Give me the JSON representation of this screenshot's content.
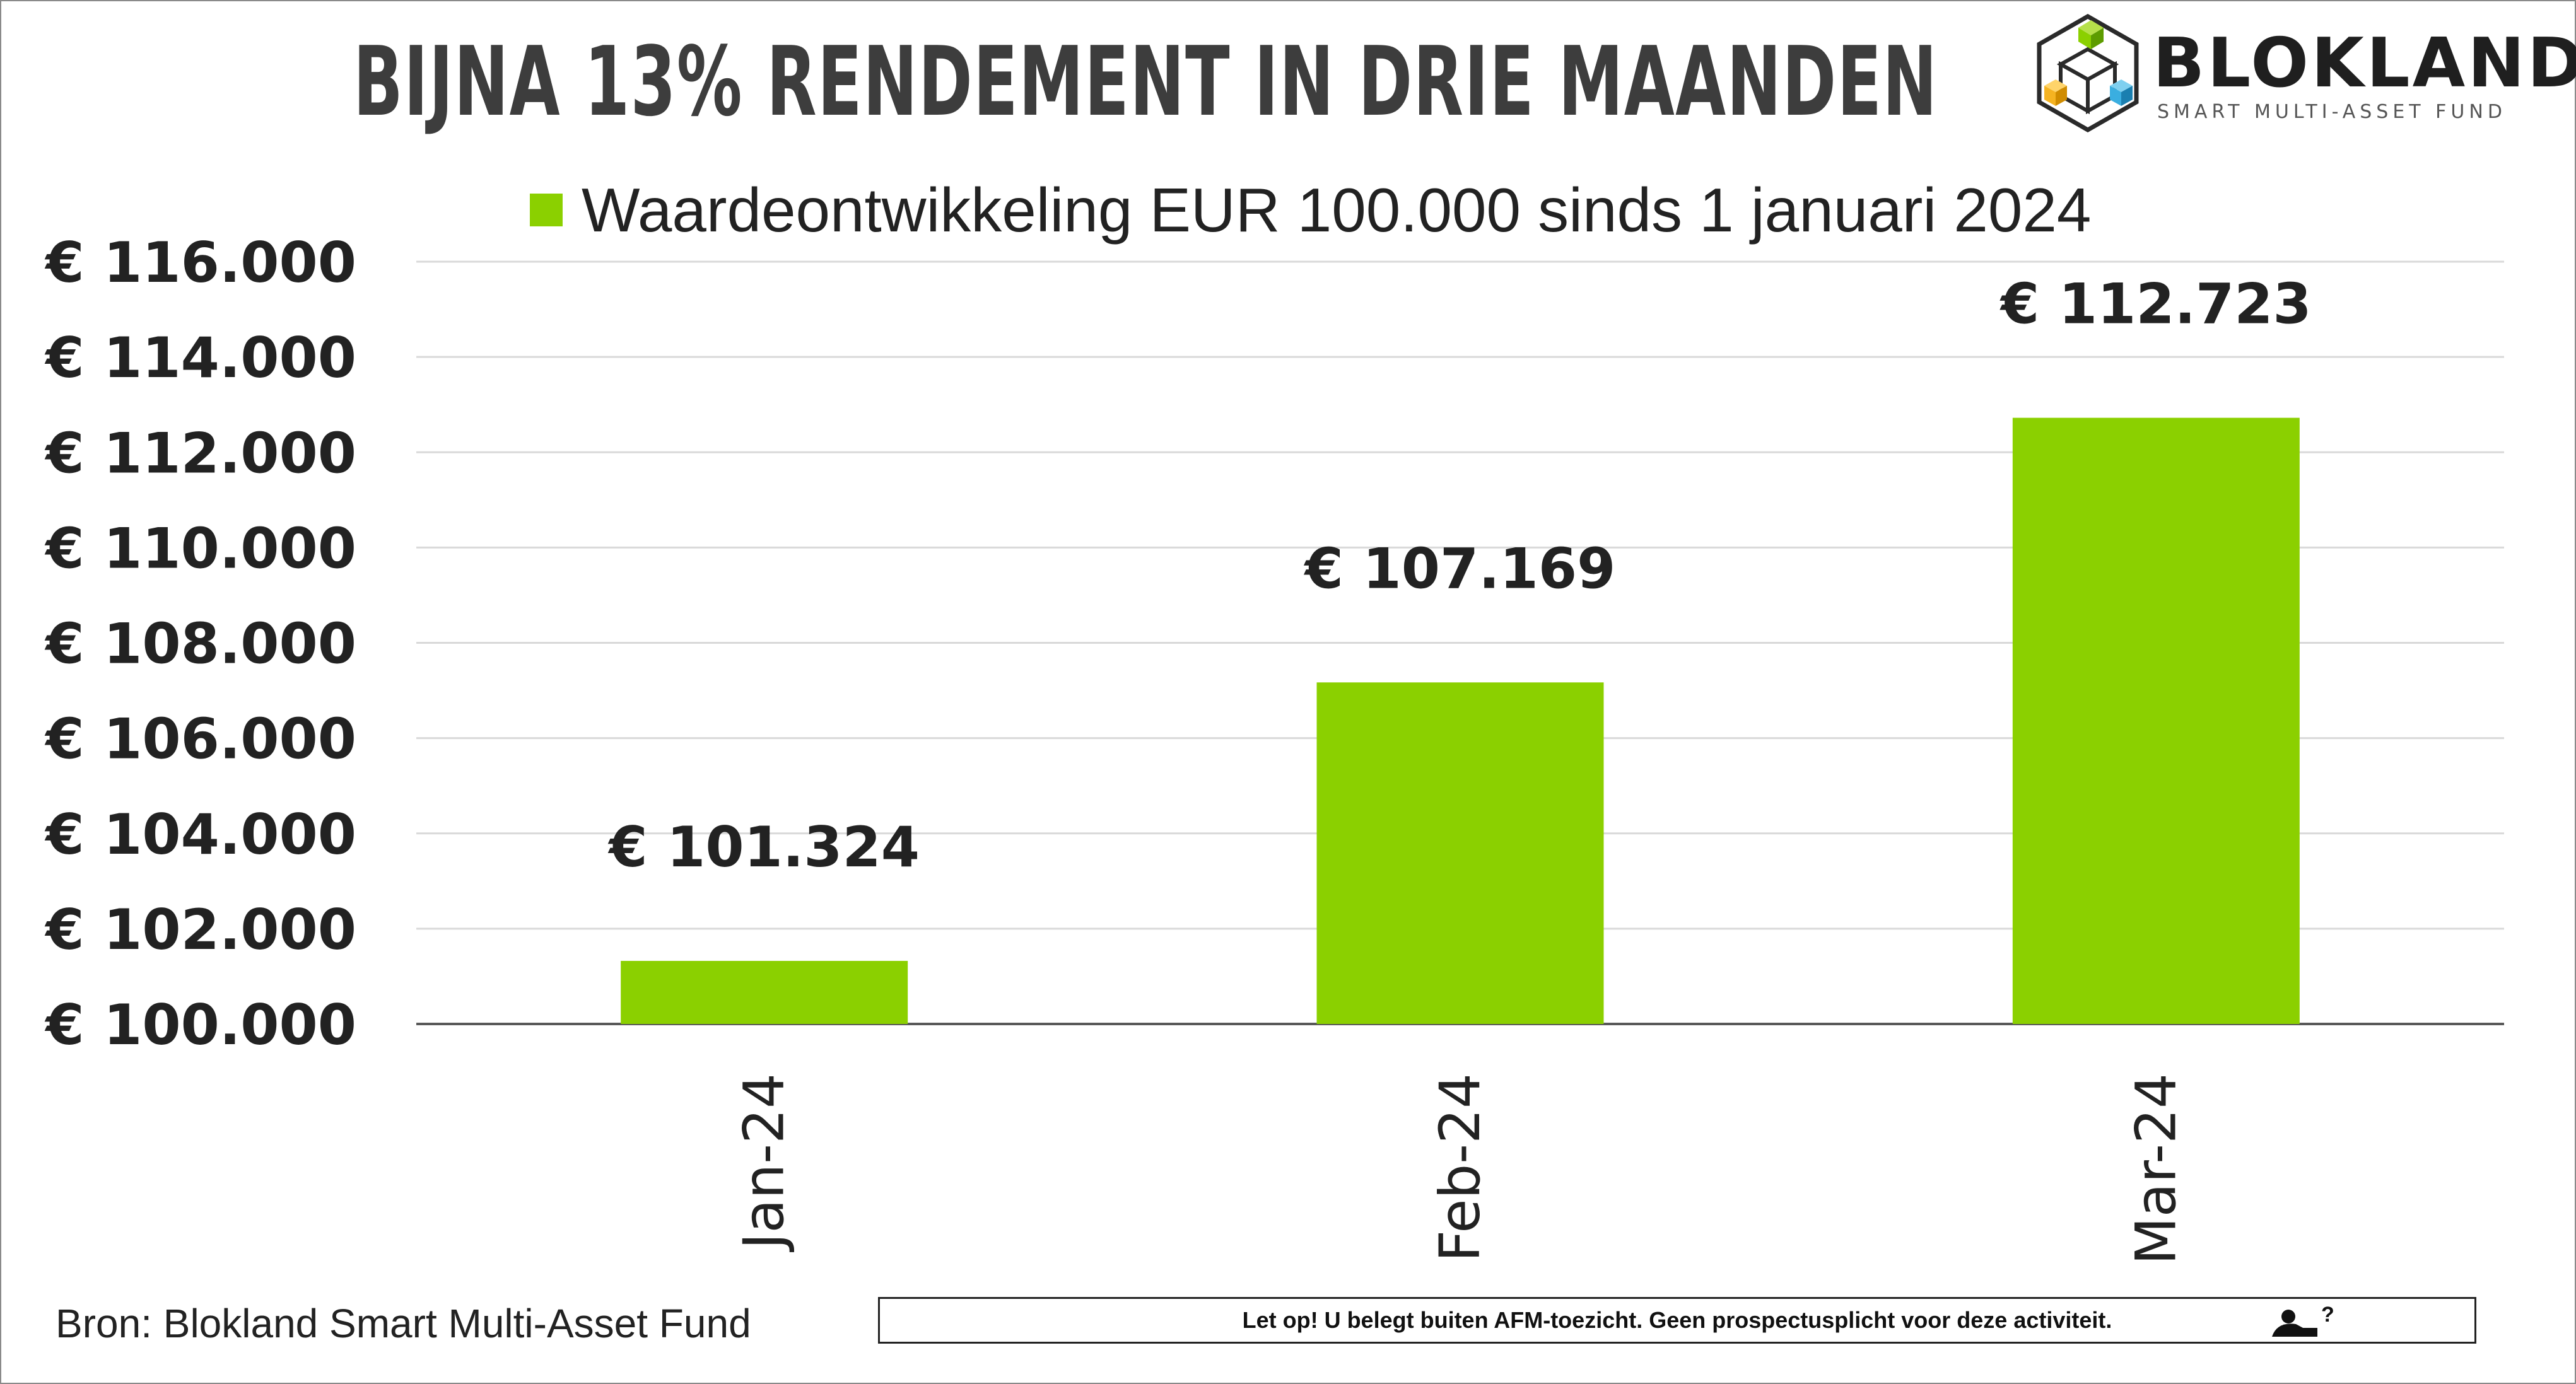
{
  "title": "BIJNA 13% RENDEMENT IN DRIE MAANDEN",
  "logo": {
    "wordmark": "BLOKLAND",
    "tagline": "SMART MULTI-ASSET FUND",
    "icon": "isometric-cubes-logo-icon"
  },
  "legend": {
    "label": "Waardeontwikkeling EUR 100.000 sinds 1 januari 2024"
  },
  "colors": {
    "bar": "#8bd000",
    "text": "#222222",
    "title": "#3d3d3d",
    "grid": "#d9d9d9",
    "axis": "#595959"
  },
  "chart_data": {
    "type": "bar",
    "title": "BIJNA 13% RENDEMENT IN DRIE MAANDEN",
    "categories": [
      "Jan-24",
      "Feb-24",
      "Mar-24"
    ],
    "series": [
      {
        "name": "Waardeontwikkeling EUR 100.000 sinds 1 januari 2024",
        "values": [
          101324,
          107169,
          112723
        ],
        "data_labels": [
          "€ 101.324",
          "€ 107.169",
          "€ 112.723"
        ]
      }
    ],
    "ylim": [
      100000,
      116000
    ],
    "yticks": [
      100000,
      102000,
      104000,
      106000,
      108000,
      110000,
      112000,
      114000,
      116000
    ],
    "ytick_labels": [
      "€ 100.000",
      "€ 102.000",
      "€ 104.000",
      "€ 106.000",
      "€ 108.000",
      "€ 110.000",
      "€ 112.000",
      "€ 114.000",
      "€ 116.000"
    ],
    "xlabel": "",
    "ylabel": "",
    "grid": true,
    "legend_position": "top"
  },
  "footer": {
    "source": "Bron: Blokland Smart Multi-Asset Fund",
    "disclaimer": "Let op! U belegt buiten AFM-toezicht. Geen prospectusplicht voor deze activiteit.",
    "disclaimer_icon": "afm-warning-icon"
  }
}
